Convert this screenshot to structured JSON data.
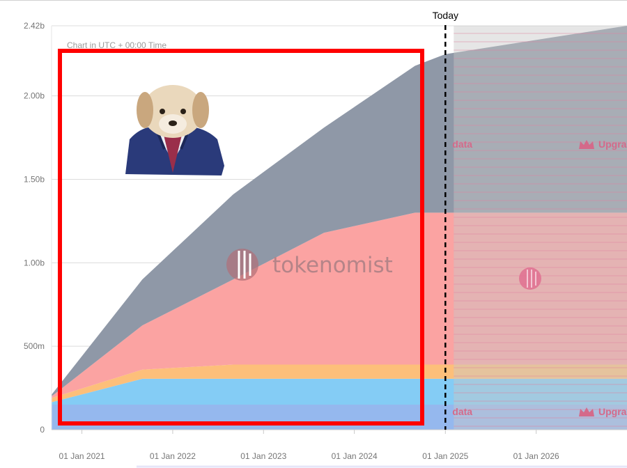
{
  "chart_data": {
    "type": "area",
    "stacked": true,
    "note": "Chart in UTC + 00:00 Time",
    "today_label": "Today",
    "today_x": "2025-01-01",
    "x": [
      "2020-09-01",
      "2021-09-01",
      "2022-09-01",
      "2023-09-01",
      "2024-09-01",
      "2025-01-01",
      "2027-01-01"
    ],
    "series": [
      {
        "color": "#95b8ee",
        "values": [
          150000000,
          150000000,
          150000000,
          150000000,
          150000000,
          150000000,
          150000000
        ]
      },
      {
        "color": "#84ccf5",
        "values": [
          15000000,
          155000000,
          155000000,
          155000000,
          155000000,
          155000000,
          155000000
        ]
      },
      {
        "color": "#fdbf7a",
        "values": [
          25000000,
          55000000,
          85000000,
          85000000,
          85000000,
          85000000,
          85000000
        ]
      },
      {
        "color": "#fba3a2",
        "values": [
          10000000,
          265000000,
          510000000,
          790000000,
          910000000,
          910000000,
          910000000
        ]
      },
      {
        "color": "#8f98a7",
        "values": [
          10000000,
          275000000,
          510000000,
          630000000,
          880000000,
          950000000,
          1120000000
        ]
      }
    ],
    "ylim": [
      0,
      2420000000
    ],
    "yticks": [
      {
        "value": 0,
        "label": "0"
      },
      {
        "value": 500000000,
        "label": "500m"
      },
      {
        "value": 1000000000,
        "label": "1.00b"
      },
      {
        "value": 1500000000,
        "label": "1.50b"
      },
      {
        "value": 2000000000,
        "label": "2.00b"
      },
      {
        "value": 2420000000,
        "label": "2.42b"
      }
    ],
    "xticks": [
      {
        "date": "2021-01-01",
        "label": "01 Jan 2021"
      },
      {
        "date": "2022-01-01",
        "label": "01 Jan 2022"
      },
      {
        "date": "2023-01-01",
        "label": "01 Jan 2023"
      },
      {
        "date": "2024-01-01",
        "label": "01 Jan 2024"
      },
      {
        "date": "2025-01-01",
        "label": "01 Jan 2025"
      },
      {
        "date": "2026-01-01",
        "label": "01 Jan 2026"
      }
    ],
    "grid": true,
    "watermark": "tokenomist",
    "locked_labels": [
      "data",
      "Upgra",
      "data",
      "Upgra"
    ],
    "locked_overlay_color": "#c8c8c8",
    "highlight_box_color": "#ff0000",
    "sticker": "puppy-in-suit"
  }
}
